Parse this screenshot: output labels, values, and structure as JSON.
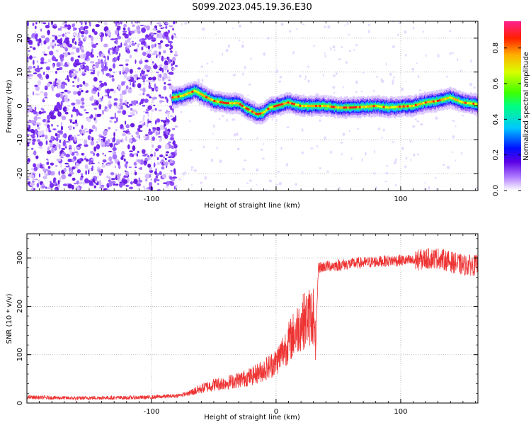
{
  "figure": {
    "title": "S099.2023.045.19.36.E30"
  },
  "chart_data": [
    {
      "type": "heatmap",
      "xlabel": "Height of straight line (km)",
      "ylabel": "Frequency (Hz)",
      "xlim": [
        -200,
        162
      ],
      "ylim": [
        -25,
        25
      ],
      "x_ticks": [
        -100,
        0,
        100
      ],
      "x_tick_labels": [
        "-100",
        "",
        "100"
      ],
      "y_ticks": [
        -20,
        -10,
        0,
        10,
        20
      ],
      "grid": true,
      "noise_region_x": [
        -200,
        -80
      ],
      "ridge": {
        "x": [
          -83,
          -75,
          -65,
          -58,
          -50,
          -40,
          -30,
          -25,
          -20,
          -15,
          -10,
          -5,
          0,
          5,
          10,
          20,
          30,
          40,
          50,
          60,
          70,
          80,
          90,
          100,
          110,
          120,
          130,
          140,
          150,
          162
        ],
        "y": [
          2.5,
          3,
          4.5,
          3,
          1.5,
          0.8,
          0.8,
          -0.5,
          -1.5,
          -2.5,
          -2,
          -0.5,
          0,
          0.5,
          1,
          0,
          0,
          0,
          -0.5,
          -0.5,
          -0.3,
          0,
          -0.5,
          -0.2,
          0,
          1,
          1.5,
          2.5,
          1,
          0.5
        ]
      },
      "colorbar": {
        "label": "Normalized spectral amplitude",
        "range": [
          0,
          0.95
        ],
        "ticks": [
          0.0,
          0.2,
          0.4,
          0.6,
          0.8
        ],
        "tick_labels": [
          "0.0",
          "0.2",
          "0.4",
          "0.6",
          "0.8"
        ]
      }
    },
    {
      "type": "line",
      "xlabel": "Height of straight line (km)",
      "ylabel": "SNR (10 * v/v)",
      "xlim": [
        -200,
        162
      ],
      "ylim": [
        0,
        350
      ],
      "x_ticks": [
        -100,
        0,
        100
      ],
      "x_tick_labels": [
        "-100",
        "0",
        "100"
      ],
      "y_ticks": [
        0,
        100,
        200,
        300
      ],
      "grid": true,
      "color": "#ee3333",
      "series": [
        {
          "x": [
            -200,
            -180,
            -160,
            -140,
            -120,
            -100,
            -80,
            -70,
            -60,
            -50,
            -40,
            -30,
            -20,
            -10,
            0,
            5,
            10,
            15,
            20,
            25,
            28,
            30,
            31,
            32,
            34,
            40,
            50,
            60,
            70,
            80,
            90,
            100,
            110,
            120,
            130,
            140,
            150,
            162
          ],
          "y": [
            12,
            11,
            10,
            11,
            11,
            12,
            15,
            20,
            30,
            38,
            42,
            48,
            55,
            68,
            85,
            105,
            125,
            145,
            165,
            175,
            180,
            185,
            125,
            130,
            280,
            283,
            285,
            288,
            290,
            292,
            294,
            295,
            294,
            298,
            300,
            292,
            285,
            285
          ]
        }
      ]
    }
  ]
}
